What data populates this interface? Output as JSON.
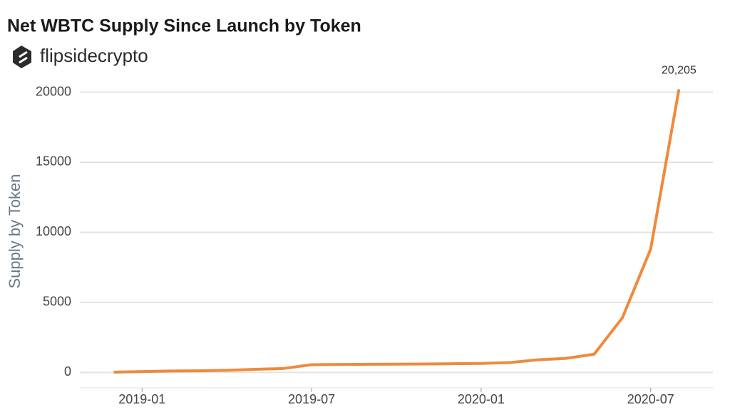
{
  "chart_data": {
    "type": "line",
    "title": "Net WBTC Supply Since Launch by Token",
    "brand": "flipsidecrypto",
    "y_label": "Supply by Token",
    "x": [
      "2018-12",
      "2019-01",
      "2019-02",
      "2019-03",
      "2019-04",
      "2019-05",
      "2019-06",
      "2019-07",
      "2019-08",
      "2019-09",
      "2019-10",
      "2019-11",
      "2019-12",
      "2020-01",
      "2020-02",
      "2020-03",
      "2020-04",
      "2020-05",
      "2020-06",
      "2020-07",
      "2020-08"
    ],
    "series": [
      {
        "name": "WBTC",
        "color": "#ef8a3c",
        "values": [
          20,
          60,
          100,
          110,
          150,
          220,
          280,
          550,
          570,
          580,
          590,
          600,
          620,
          640,
          700,
          900,
          1000,
          1300,
          3900,
          8800,
          20205
        ],
        "value_labels": [
          null,
          null,
          null,
          null,
          null,
          null,
          null,
          null,
          null,
          null,
          null,
          null,
          null,
          null,
          null,
          null,
          null,
          null,
          null,
          null,
          "20,205"
        ]
      }
    ],
    "xlim": [
      "2018-11",
      "2020-09"
    ],
    "xticks": [
      "2019-01",
      "2019-07",
      "2020-01",
      "2020-07"
    ],
    "ylim": [
      -1100,
      21500
    ],
    "yticks": [
      0,
      5000,
      10000,
      15000,
      20000
    ],
    "grid": true
  }
}
